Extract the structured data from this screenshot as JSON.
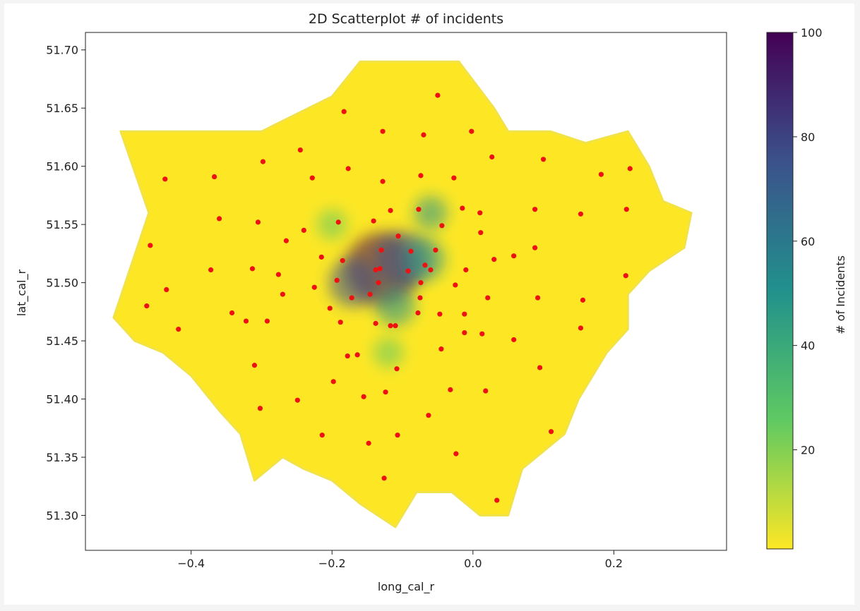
{
  "chart_data": {
    "type": "scatter",
    "title": "2D Scatterplot # of incidents",
    "xlabel": "long_cal_r",
    "ylabel": "lat_cal_r",
    "xlim": [
      -0.55,
      0.36
    ],
    "ylim": [
      51.27,
      51.715
    ],
    "xticks": [
      -0.4,
      -0.2,
      0.0,
      0.2
    ],
    "xtick_labels": [
      "−0.4",
      "−0.2",
      "0.0",
      "0.2"
    ],
    "yticks": [
      51.3,
      51.35,
      51.4,
      51.45,
      51.5,
      51.55,
      51.6,
      51.65,
      51.7
    ],
    "ytick_labels": [
      "51.30",
      "51.35",
      "51.40",
      "51.45",
      "51.50",
      "51.55",
      "51.60",
      "51.65",
      "51.70"
    ],
    "colorbar": {
      "label": "# of Incidents",
      "min": 1,
      "max": 100,
      "ticks": [
        20,
        40,
        60,
        80,
        100
      ],
      "colormap": "viridis_r",
      "colors": [
        "#fde725",
        "#5ec962",
        "#21918c",
        "#3b528b",
        "#440154"
      ]
    },
    "incident_boundary_lonlat": [
      [
        -0.51,
        51.47
      ],
      [
        -0.46,
        51.56
      ],
      [
        -0.5,
        51.63
      ],
      [
        -0.4,
        51.63
      ],
      [
        -0.3,
        51.63
      ],
      [
        -0.2,
        51.66
      ],
      [
        -0.16,
        51.69
      ],
      [
        -0.08,
        51.69
      ],
      [
        -0.02,
        51.69
      ],
      [
        0.03,
        51.65
      ],
      [
        0.05,
        51.63
      ],
      [
        0.11,
        51.63
      ],
      [
        0.16,
        51.62
      ],
      [
        0.22,
        51.63
      ],
      [
        0.25,
        51.6
      ],
      [
        0.27,
        51.57
      ],
      [
        0.31,
        51.56
      ],
      [
        0.3,
        51.53
      ],
      [
        0.25,
        51.51
      ],
      [
        0.22,
        51.49
      ],
      [
        0.22,
        51.46
      ],
      [
        0.19,
        51.44
      ],
      [
        0.15,
        51.4
      ],
      [
        0.13,
        51.37
      ],
      [
        0.09,
        51.35
      ],
      [
        0.07,
        51.34
      ],
      [
        0.05,
        51.3
      ],
      [
        0.01,
        51.3
      ],
      [
        -0.03,
        51.32
      ],
      [
        -0.08,
        51.32
      ],
      [
        -0.11,
        51.29
      ],
      [
        -0.16,
        51.31
      ],
      [
        -0.2,
        51.33
      ],
      [
        -0.24,
        51.34
      ],
      [
        -0.27,
        51.35
      ],
      [
        -0.31,
        51.33
      ],
      [
        -0.33,
        51.37
      ],
      [
        -0.36,
        51.39
      ],
      [
        -0.4,
        51.42
      ],
      [
        -0.44,
        51.44
      ],
      [
        -0.48,
        51.45
      ]
    ],
    "hotspots": [
      {
        "lon": -0.13,
        "lat": 51.512,
        "count": 100
      },
      {
        "lon": -0.1,
        "lat": 51.52,
        "count": 75
      },
      {
        "lon": -0.17,
        "lat": 51.5,
        "count": 65
      },
      {
        "lon": -0.07,
        "lat": 51.52,
        "count": 55
      },
      {
        "lon": -0.11,
        "lat": 51.48,
        "count": 50
      },
      {
        "lon": -0.06,
        "lat": 51.56,
        "count": 40
      },
      {
        "lon": -0.2,
        "lat": 51.55,
        "count": 35
      },
      {
        "lon": -0.12,
        "lat": 51.44,
        "count": 35
      }
    ],
    "red_points": [
      [
        -0.05,
        51.661
      ],
      [
        -0.183,
        51.647
      ],
      [
        -0.128,
        51.63
      ],
      [
        -0.07,
        51.627
      ],
      [
        -0.002,
        51.63
      ],
      [
        -0.245,
        51.614
      ],
      [
        -0.298,
        51.604
      ],
      [
        0.027,
        51.608
      ],
      [
        0.1,
        51.606
      ],
      [
        -0.177,
        51.598
      ],
      [
        0.223,
        51.598
      ],
      [
        -0.437,
        51.589
      ],
      [
        -0.367,
        51.591
      ],
      [
        -0.228,
        51.59
      ],
      [
        -0.128,
        51.587
      ],
      [
        -0.074,
        51.592
      ],
      [
        -0.027,
        51.59
      ],
      [
        0.182,
        51.593
      ],
      [
        0.088,
        51.563
      ],
      [
        0.153,
        51.559
      ],
      [
        0.218,
        51.563
      ],
      [
        -0.117,
        51.562
      ],
      [
        -0.077,
        51.563
      ],
      [
        -0.015,
        51.564
      ],
      [
        0.01,
        51.56
      ],
      [
        -0.36,
        51.555
      ],
      [
        -0.305,
        51.552
      ],
      [
        -0.191,
        51.552
      ],
      [
        -0.141,
        51.553
      ],
      [
        -0.044,
        51.549
      ],
      [
        0.011,
        51.543
      ],
      [
        -0.106,
        51.54
      ],
      [
        -0.458,
        51.532
      ],
      [
        -0.265,
        51.536
      ],
      [
        -0.24,
        51.545
      ],
      [
        -0.13,
        51.528
      ],
      [
        -0.088,
        51.527
      ],
      [
        -0.053,
        51.528
      ],
      [
        -0.215,
        51.522
      ],
      [
        -0.185,
        51.519
      ],
      [
        0.058,
        51.523
      ],
      [
        0.03,
        51.52
      ],
      [
        0.088,
        51.53
      ],
      [
        -0.068,
        51.515
      ],
      [
        -0.01,
        51.511
      ],
      [
        -0.372,
        51.511
      ],
      [
        -0.313,
        51.512
      ],
      [
        -0.06,
        51.511
      ],
      [
        -0.132,
        51.512
      ],
      [
        -0.138,
        51.511
      ],
      [
        -0.092,
        51.51
      ],
      [
        -0.276,
        51.507
      ],
      [
        -0.193,
        51.502
      ],
      [
        -0.134,
        51.5
      ],
      [
        -0.074,
        51.5
      ],
      [
        -0.025,
        51.498
      ],
      [
        0.217,
        51.506
      ],
      [
        -0.435,
        51.494
      ],
      [
        -0.225,
        51.496
      ],
      [
        -0.27,
        51.49
      ],
      [
        -0.172,
        51.487
      ],
      [
        -0.075,
        51.487
      ],
      [
        0.021,
        51.487
      ],
      [
        0.092,
        51.487
      ],
      [
        0.156,
        51.485
      ],
      [
        -0.463,
        51.48
      ],
      [
        -0.203,
        51.478
      ],
      [
        -0.146,
        51.49
      ],
      [
        -0.342,
        51.474
      ],
      [
        -0.078,
        51.474
      ],
      [
        -0.047,
        51.473
      ],
      [
        -0.012,
        51.473
      ],
      [
        -0.322,
        51.467
      ],
      [
        -0.292,
        51.467
      ],
      [
        -0.188,
        51.466
      ],
      [
        -0.138,
        51.465
      ],
      [
        -0.117,
        51.463
      ],
      [
        -0.11,
        51.463
      ],
      [
        -0.418,
        51.46
      ],
      [
        -0.012,
        51.457
      ],
      [
        0.013,
        51.456
      ],
      [
        0.153,
        51.461
      ],
      [
        0.058,
        51.451
      ],
      [
        -0.045,
        51.443
      ],
      [
        -0.178,
        51.437
      ],
      [
        -0.164,
        51.438
      ],
      [
        -0.108,
        51.426
      ],
      [
        0.095,
        51.427
      ],
      [
        -0.31,
        51.429
      ],
      [
        -0.198,
        51.415
      ],
      [
        -0.155,
        51.402
      ],
      [
        -0.124,
        51.406
      ],
      [
        -0.032,
        51.408
      ],
      [
        0.018,
        51.407
      ],
      [
        -0.249,
        51.399
      ],
      [
        -0.302,
        51.392
      ],
      [
        -0.063,
        51.386
      ],
      [
        -0.214,
        51.369
      ],
      [
        -0.107,
        51.369
      ],
      [
        0.111,
        51.372
      ],
      [
        -0.148,
        51.362
      ],
      [
        -0.024,
        51.353
      ],
      [
        -0.126,
        51.332
      ],
      [
        0.034,
        51.313
      ]
    ]
  }
}
